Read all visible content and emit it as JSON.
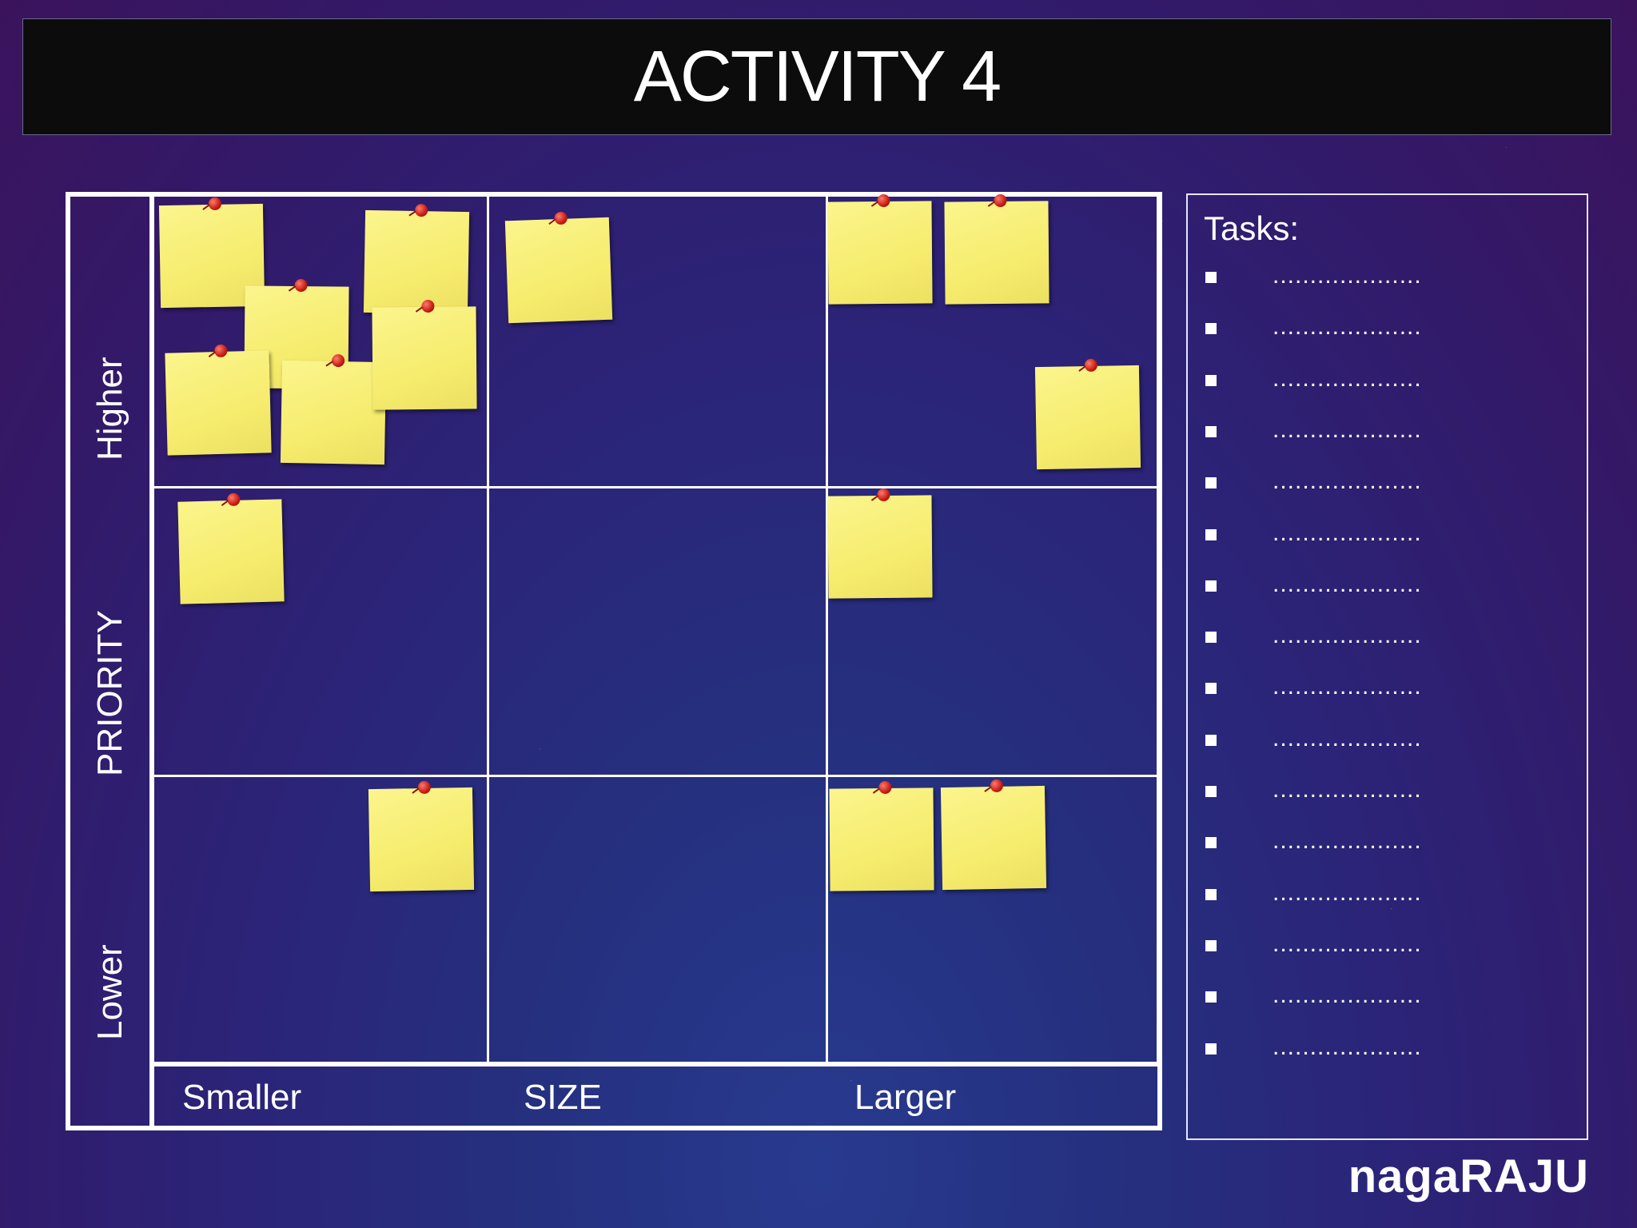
{
  "title": "ACTIVITY 4",
  "axes": {
    "y_title": "PRIORITY",
    "y_high": "Higher",
    "y_low": "Lower",
    "x_title": "SIZE",
    "x_small": "Smaller",
    "x_large": "Larger"
  },
  "tasks": {
    "heading": "Tasks:",
    "items": [
      "....................",
      "....................",
      "....................",
      "....................",
      "....................",
      "....................",
      "....................",
      "....................",
      "....................",
      "....................",
      "....................",
      "....................",
      "....................",
      "....................",
      "....................",
      "...................."
    ]
  },
  "notes": {
    "count": 16,
    "colors": {
      "note": "#f6ec6e",
      "pin": "#c41b12"
    }
  },
  "brand": "nagaRAJU"
}
